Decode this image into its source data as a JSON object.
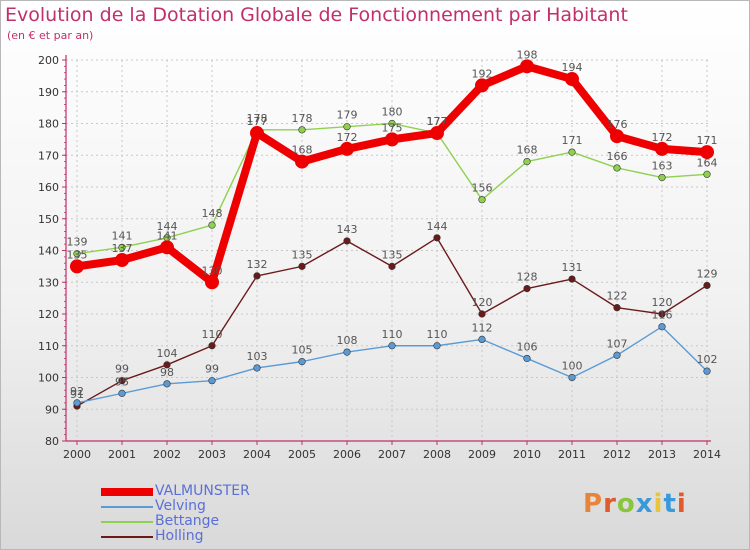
{
  "header": {
    "title": "Evolution de la Dotation Globale de Fonctionnement par Habitant",
    "subtitle": "(en € et par an)"
  },
  "brand": {
    "text": "Proxiti",
    "colors": [
      "#e8843a",
      "#e05a2b",
      "#8bc540",
      "#3a9ad9",
      "#e8c53a",
      "#3a9ad9",
      "#e05a2b"
    ]
  },
  "chart_data": {
    "type": "line",
    "x": [
      2000,
      2001,
      2002,
      2003,
      2004,
      2005,
      2006,
      2007,
      2008,
      2009,
      2010,
      2011,
      2012,
      2013,
      2014
    ],
    "ylim": [
      80,
      200
    ],
    "yticks": [
      80,
      90,
      100,
      110,
      120,
      130,
      140,
      150,
      160,
      170,
      180,
      190,
      200
    ],
    "grid": true,
    "legend_position": "bottom-left",
    "series": [
      {
        "name": "VALMUNSTER",
        "color": "#ee0000",
        "emphasis": true,
        "values": [
          135,
          137,
          141,
          130,
          177,
          168,
          172,
          175,
          177,
          192,
          198,
          194,
          176,
          172,
          171
        ]
      },
      {
        "name": "Velving",
        "color": "#5b9bd5",
        "values": [
          92,
          95,
          98,
          99,
          103,
          105,
          108,
          110,
          110,
          112,
          106,
          100,
          107,
          116,
          102
        ]
      },
      {
        "name": "Bettange",
        "color": "#8fd14f",
        "values": [
          139,
          141,
          144,
          148,
          178,
          178,
          179,
          180,
          177,
          156,
          168,
          171,
          166,
          163,
          164
        ]
      },
      {
        "name": "Holling",
        "color": "#6b1a1a",
        "values": [
          91,
          99,
          104,
          110,
          132,
          135,
          143,
          135,
          144,
          120,
          128,
          131,
          122,
          120,
          129
        ]
      }
    ]
  }
}
